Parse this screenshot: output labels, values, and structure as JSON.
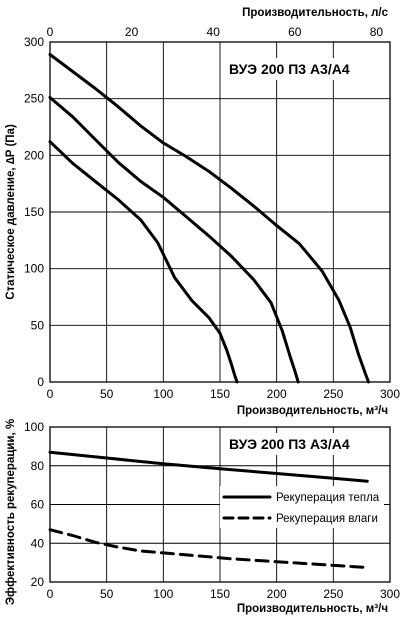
{
  "chart_data": [
    {
      "type": "line",
      "title": "ВУЭ 200 П3 А3/А4",
      "xlabel": "Производительность, м³/ч",
      "ylabel": "Статическое давление, ∆P (Па)",
      "x2label": "Производительность, л/с",
      "xlim": [
        0,
        300
      ],
      "ylim": [
        0,
        300
      ],
      "x2lim": [
        0,
        83.33
      ],
      "xticks": [
        "0",
        "50",
        "100",
        "150",
        "200",
        "250",
        "300"
      ],
      "yticks": [
        "0",
        "50",
        "100",
        "150",
        "200",
        "250",
        "300"
      ],
      "x2ticks": [
        "0",
        "20",
        "40",
        "60",
        "80"
      ],
      "grid": true,
      "series": [
        {
          "x": [
            0,
            20,
            40,
            60,
            80,
            100,
            120,
            140,
            160,
            180,
            200,
            220,
            240,
            255,
            265,
            272,
            278,
            281
          ],
          "y": [
            289,
            274,
            259,
            243,
            226,
            211,
            199,
            186,
            171,
            155,
            138,
            122,
            98,
            72,
            48,
            25,
            8,
            0
          ]
        },
        {
          "x": [
            0,
            20,
            40,
            60,
            80,
            100,
            120,
            140,
            160,
            180,
            195,
            205,
            212,
            216,
            219
          ],
          "y": [
            251,
            234,
            214,
            194,
            177,
            163,
            146,
            129,
            111,
            90,
            70,
            45,
            22,
            10,
            0
          ]
        },
        {
          "x": [
            0,
            20,
            40,
            60,
            80,
            95,
            110,
            125,
            140,
            150,
            156,
            160,
            163,
            165
          ],
          "y": [
            212,
            193,
            177,
            161,
            143,
            123,
            92,
            72,
            57,
            43,
            28,
            16,
            6,
            0
          ]
        }
      ]
    },
    {
      "type": "line",
      "title": "ВУЭ 200 П3 А3/А4",
      "xlabel": "Производительность, м³/ч",
      "ylabel": "Эффективность рекуперации, %",
      "xlim": [
        0,
        300
      ],
      "ylim": [
        20,
        100
      ],
      "xticks": [
        "0",
        "50",
        "100",
        "150",
        "200",
        "250",
        "300"
      ],
      "yticks": [
        "20",
        "40",
        "60",
        "80",
        "100"
      ],
      "grid": true,
      "legend": "right",
      "series": [
        {
          "name": "Рекуперация тепла",
          "style": "solid",
          "x": [
            0,
            50,
            100,
            150,
            200,
            250,
            280
          ],
          "y": [
            87,
            84,
            81,
            78.5,
            76,
            73.5,
            72
          ]
        },
        {
          "name": "Рекуперация влаги",
          "style": "dashed",
          "x": [
            0,
            20,
            40,
            60,
            80,
            100,
            130,
            160,
            200,
            240,
            280
          ],
          "y": [
            47,
            44,
            40.5,
            38,
            36,
            35,
            33.5,
            32,
            30.5,
            29,
            27.5
          ]
        }
      ]
    }
  ]
}
